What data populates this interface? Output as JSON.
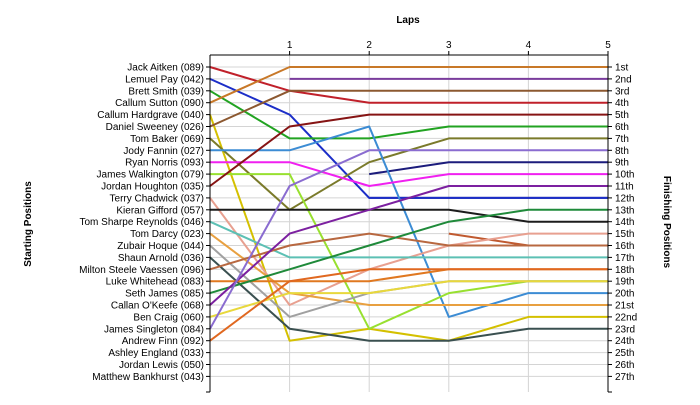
{
  "chart_data": {
    "type": "line",
    "x_title": "Laps",
    "left_axis_title": "Starting Positions",
    "right_axis_title": "Finishing Positions",
    "laps": [
      0,
      1,
      2,
      3,
      4,
      5
    ],
    "lap_labels": [
      "1",
      "2",
      "3",
      "4",
      "5"
    ],
    "grid": true,
    "y_range": [
      1,
      27
    ],
    "finishing_labels": [
      "1st",
      "2nd",
      "3rd",
      "4th",
      "5th",
      "6th",
      "7th",
      "8th",
      "9th",
      "10th",
      "11th",
      "12th",
      "13th",
      "14th",
      "15th",
      "16th",
      "17th",
      "18th",
      "19th",
      "20th",
      "21st",
      "22nd",
      "23rd",
      "24th",
      "25th",
      "26th",
      "27th"
    ],
    "series": [
      {
        "name": "Jack Aitken (089)",
        "color": "#c0202a",
        "positions": [
          1,
          3,
          4,
          4,
          4,
          4
        ]
      },
      {
        "name": "Lemuel Pay (042)",
        "color": "#1c2ec8",
        "positions": [
          2,
          5,
          12,
          12,
          12,
          12
        ]
      },
      {
        "name": "Brett Smith (039)",
        "color": "#22a322",
        "positions": [
          3,
          7,
          7,
          6,
          6,
          6
        ]
      },
      {
        "name": "Callum Sutton (090)",
        "color": "#c87828",
        "positions": [
          4,
          1,
          1,
          1,
          1,
          1
        ]
      },
      {
        "name": "Callum Hardgrave (040)",
        "color": "#d4c000",
        "positions": [
          5,
          24,
          23,
          24,
          22,
          22
        ]
      },
      {
        "name": "Daniel Sweeney (026)",
        "color": "#8c5830",
        "positions": [
          6,
          3,
          3,
          3,
          3,
          3
        ]
      },
      {
        "name": "Tom Baker (069)",
        "color": "#7a7a2a",
        "positions": [
          7,
          13,
          9,
          7,
          7,
          7
        ]
      },
      {
        "name": "Jody Fannin (027)",
        "color": "#3c8cd4",
        "positions": [
          8,
          8,
          6,
          22,
          20,
          20
        ]
      },
      {
        "name": "Ryan Norris (093)",
        "color": "#f020f0",
        "positions": [
          9,
          9,
          11,
          10,
          10,
          10
        ]
      },
      {
        "name": "James Walkington (079)",
        "color": "#98e030",
        "positions": [
          10,
          10,
          23,
          20,
          19,
          19
        ]
      },
      {
        "name": "Jordan Houghton (035)",
        "color": "#861414",
        "positions": [
          11,
          6,
          5,
          5,
          5,
          5
        ]
      },
      {
        "name": "Terry Chadwick (037)",
        "color": "#e8a090",
        "positions": [
          12,
          21,
          18,
          16,
          15,
          15
        ]
      },
      {
        "name": "Kieran Gifford (057)",
        "color": "#1c1c1c",
        "positions": [
          13,
          13,
          13,
          13,
          14,
          14
        ]
      },
      {
        "name": "Tom Sharpe Reynolds (046)",
        "color": "#5cc0b4",
        "positions": [
          14,
          17,
          17,
          17,
          17,
          17
        ]
      },
      {
        "name": "Tom Darcy (023)",
        "color": "#e8a040",
        "positions": [
          15,
          20,
          21,
          21,
          21,
          21
        ]
      },
      {
        "name": "Zubair Hoque (044)",
        "color": "#a0a0a0",
        "positions": [
          16,
          22,
          20,
          19,
          19,
          19
        ]
      },
      {
        "name": "Shaun Arnold (036)",
        "color": "#3a5050",
        "positions": [
          17,
          23,
          24,
          24,
          23,
          23
        ]
      },
      {
        "name": "Milton Steele Vaessen (096)",
        "color": "#b86840",
        "positions": [
          18,
          16,
          15,
          16,
          16,
          16
        ]
      },
      {
        "name": "Luke Whitehead (083)",
        "color": "#e07820",
        "positions": [
          19,
          19,
          19,
          18,
          18,
          18
        ]
      },
      {
        "name": "Seth James (085)",
        "color": "#1f8a3a",
        "positions": [
          20,
          18,
          16,
          14,
          13,
          13
        ]
      },
      {
        "name": "Callan O'Keefe (068)",
        "color": "#7c20a0",
        "positions": [
          21,
          15,
          13,
          11,
          11,
          11
        ]
      },
      {
        "name": "Ben Craig (060)",
        "color": "#e8d83c",
        "positions": [
          22,
          20,
          20,
          19,
          19,
          19
        ]
      },
      {
        "name": "James Singleton (084)",
        "color": "#8a6cd0",
        "positions": [
          23,
          11,
          8,
          8,
          8,
          8
        ]
      },
      {
        "name": "Andrew Finn (092)",
        "color": "#e06820",
        "positions": [
          24,
          19,
          18,
          18,
          18,
          18
        ]
      },
      {
        "name": "Ashley England (033)",
        "positions": [
          null,
          null,
          null,
          null,
          null,
          null
        ]
      },
      {
        "name": "Jordan Lewis (050)",
        "positions": [
          null,
          null,
          null,
          null,
          null,
          null
        ]
      },
      {
        "name": "Matthew Bankhurst (043)",
        "positions": [
          null,
          null,
          null,
          null,
          null,
          null
        ]
      }
    ],
    "extra_segments": [
      {
        "color": "#7a3c9c",
        "positions": [
          null,
          2,
          2,
          2,
          2,
          2
        ]
      },
      {
        "color": "#1c1c7c",
        "positions": [
          null,
          null,
          10,
          9,
          9,
          9
        ]
      },
      {
        "color": "#2a2a70",
        "positions": [
          null,
          null,
          12,
          12,
          12,
          12
        ]
      },
      {
        "color": "#c05a30",
        "positions": [
          null,
          null,
          null,
          15,
          16,
          16
        ]
      }
    ]
  }
}
